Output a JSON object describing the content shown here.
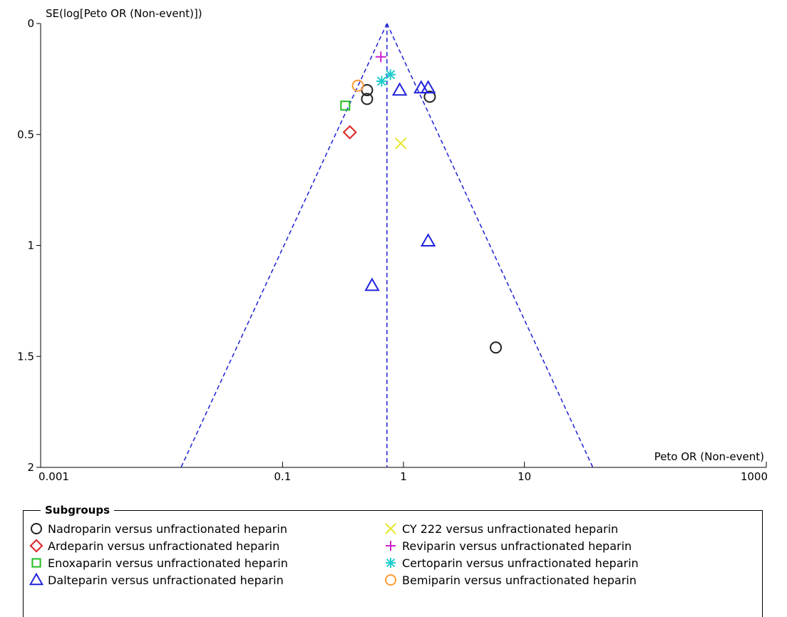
{
  "chart_data": {
    "type": "scatter",
    "title": "",
    "ylabel": "SE(log[Peto OR (Non-event)])",
    "xlabel": "Peto OR (Non-event)",
    "x_scale": "log",
    "xlim": [
      0.001,
      1000
    ],
    "ylim": [
      0,
      2
    ],
    "y_reversed": true,
    "x_ticks": [
      "0.001",
      "0.1",
      "1",
      "10",
      "1000"
    ],
    "x_tick_values": [
      0.001,
      0.1,
      1,
      10,
      1000
    ],
    "y_ticks": [
      "0",
      "0.5",
      "1",
      "1.5",
      "2"
    ],
    "y_tick_values": [
      0,
      0.5,
      1,
      1.5,
      2
    ],
    "pooled_estimate": 0.73,
    "funnel_lines_color": "#1f1fd6",
    "legend": {
      "title": "Subgroups",
      "placement": "bottom"
    },
    "series": [
      {
        "name": "Nadroparin versus unfractionated heparin",
        "marker": "circle",
        "color": "#222222",
        "points": [
          [
            0.5,
            0.3
          ],
          [
            0.5,
            0.34
          ],
          [
            1.65,
            0.33
          ],
          [
            5.8,
            1.46
          ]
        ]
      },
      {
        "name": "Ardeparin versus unfractionated heparin",
        "marker": "diamond",
        "color": "#dd2222",
        "points": [
          [
            0.36,
            0.49
          ]
        ]
      },
      {
        "name": "Enoxaparin versus unfractionated heparin",
        "marker": "square",
        "color": "#22bb22",
        "points": [
          [
            0.33,
            0.37
          ]
        ]
      },
      {
        "name": "Dalteparin versus unfractionated heparin",
        "marker": "triangle",
        "color": "#2222dd",
        "points": [
          [
            0.93,
            0.3
          ],
          [
            1.4,
            0.29
          ],
          [
            1.6,
            0.29
          ],
          [
            1.6,
            0.98
          ],
          [
            0.55,
            1.18
          ]
        ]
      },
      {
        "name": "CY 222 versus unfractionated heparin",
        "marker": "x",
        "color": "#e6e62a",
        "points": [
          [
            0.95,
            0.54
          ]
        ]
      },
      {
        "name": "Reviparin versus unfractionated heparin",
        "marker": "plus",
        "color": "#cc22cc",
        "points": [
          [
            0.65,
            0.15
          ]
        ]
      },
      {
        "name": "Certoparin versus unfractionated heparin",
        "marker": "asterisk",
        "color": "#22cccc",
        "points": [
          [
            0.66,
            0.26
          ],
          [
            0.78,
            0.23
          ]
        ]
      },
      {
        "name": "Bemiparin versus unfractionated heparin",
        "marker": "circle",
        "color": "#ff9933",
        "points": [
          [
            0.42,
            0.28
          ]
        ]
      }
    ]
  }
}
